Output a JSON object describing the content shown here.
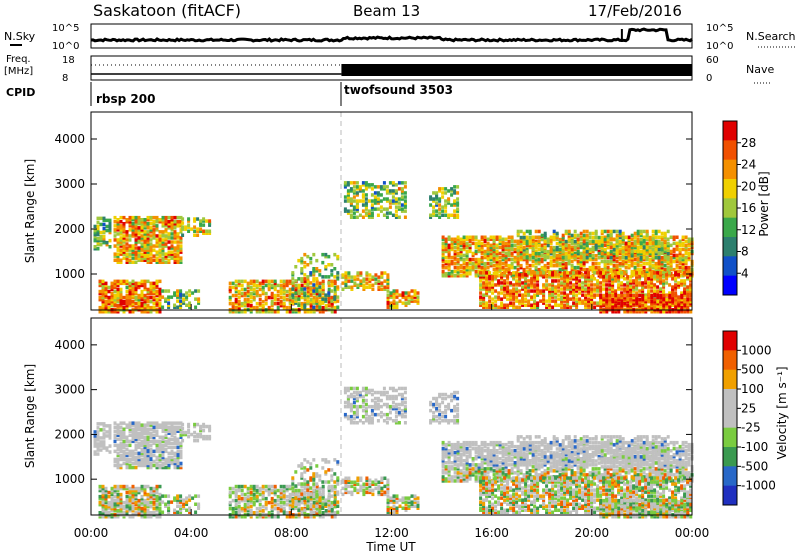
{
  "header": {
    "title": "Saskatoon (fitACF)",
    "beam": "Beam 13",
    "date": "17/Feb/2016"
  },
  "top_panels": {
    "nsky_label": "N.Sky",
    "nsky_left_ticks": [
      "10^5",
      "10^0"
    ],
    "nsearch_label": "N.Search",
    "nsearch_right_ticks": [
      "10^5",
      "10^0"
    ],
    "freq_label_line1": "Freq.",
    "freq_label_line2": "[MHz]",
    "freq_ticks": [
      "18",
      "8"
    ],
    "nave_label": "Nave",
    "nave_ticks": [
      "60",
      "0"
    ],
    "cpid_label": "CPID",
    "cpid_segments": [
      {
        "label": "rbsp 200",
        "start_hour": 0
      },
      {
        "label": "twofsound 3503",
        "start_hour": 10
      }
    ]
  },
  "colors": {
    "power_scale": [
      "#0000ff",
      "#1050c8",
      "#2c7f6e",
      "#3aa84a",
      "#a0c83c",
      "#f0d000",
      "#f49000",
      "#f05000",
      "#e00000"
    ],
    "velocity_scale": [
      "#2030c0",
      "#2868c8",
      "#3a9a50",
      "#7acc40",
      "#c0c0c0",
      "#c0c0c0",
      "#f0a000",
      "#f06000",
      "#e00000"
    ]
  },
  "chart_data": [
    {
      "type": "heatmap",
      "name": "power",
      "ylabel": "Slant Range [km]",
      "y_ticks": [
        "4000",
        "3000",
        "2000",
        "1000"
      ],
      "ylim": [
        200,
        4600
      ],
      "xlim_hours": [
        0,
        24
      ],
      "x_ticks": [
        "00:00",
        "04:00",
        "08:00",
        "12:00",
        "16:00",
        "20:00",
        "00:00"
      ],
      "colorbar": {
        "label": "Power [dB]",
        "ticks": [
          "28",
          "24",
          "20",
          "16",
          "12",
          "8",
          "4"
        ]
      }
    },
    {
      "type": "heatmap",
      "name": "velocity",
      "ylabel": "Slant Range [km]",
      "y_ticks": [
        "4000",
        "3000",
        "2000",
        "1000"
      ],
      "ylim": [
        200,
        4600
      ],
      "xlim_hours": [
        0,
        24
      ],
      "x_ticks": [
        "00:00",
        "04:00",
        "08:00",
        "12:00",
        "16:00",
        "20:00",
        "00:00"
      ],
      "xlabel": "Time UT",
      "colorbar": {
        "label": "Velocity [m s⁻¹]",
        "ticks": [
          "1000",
          "500",
          "100",
          "25",
          "-25",
          "-100",
          "-500",
          "-1000"
        ]
      }
    }
  ]
}
